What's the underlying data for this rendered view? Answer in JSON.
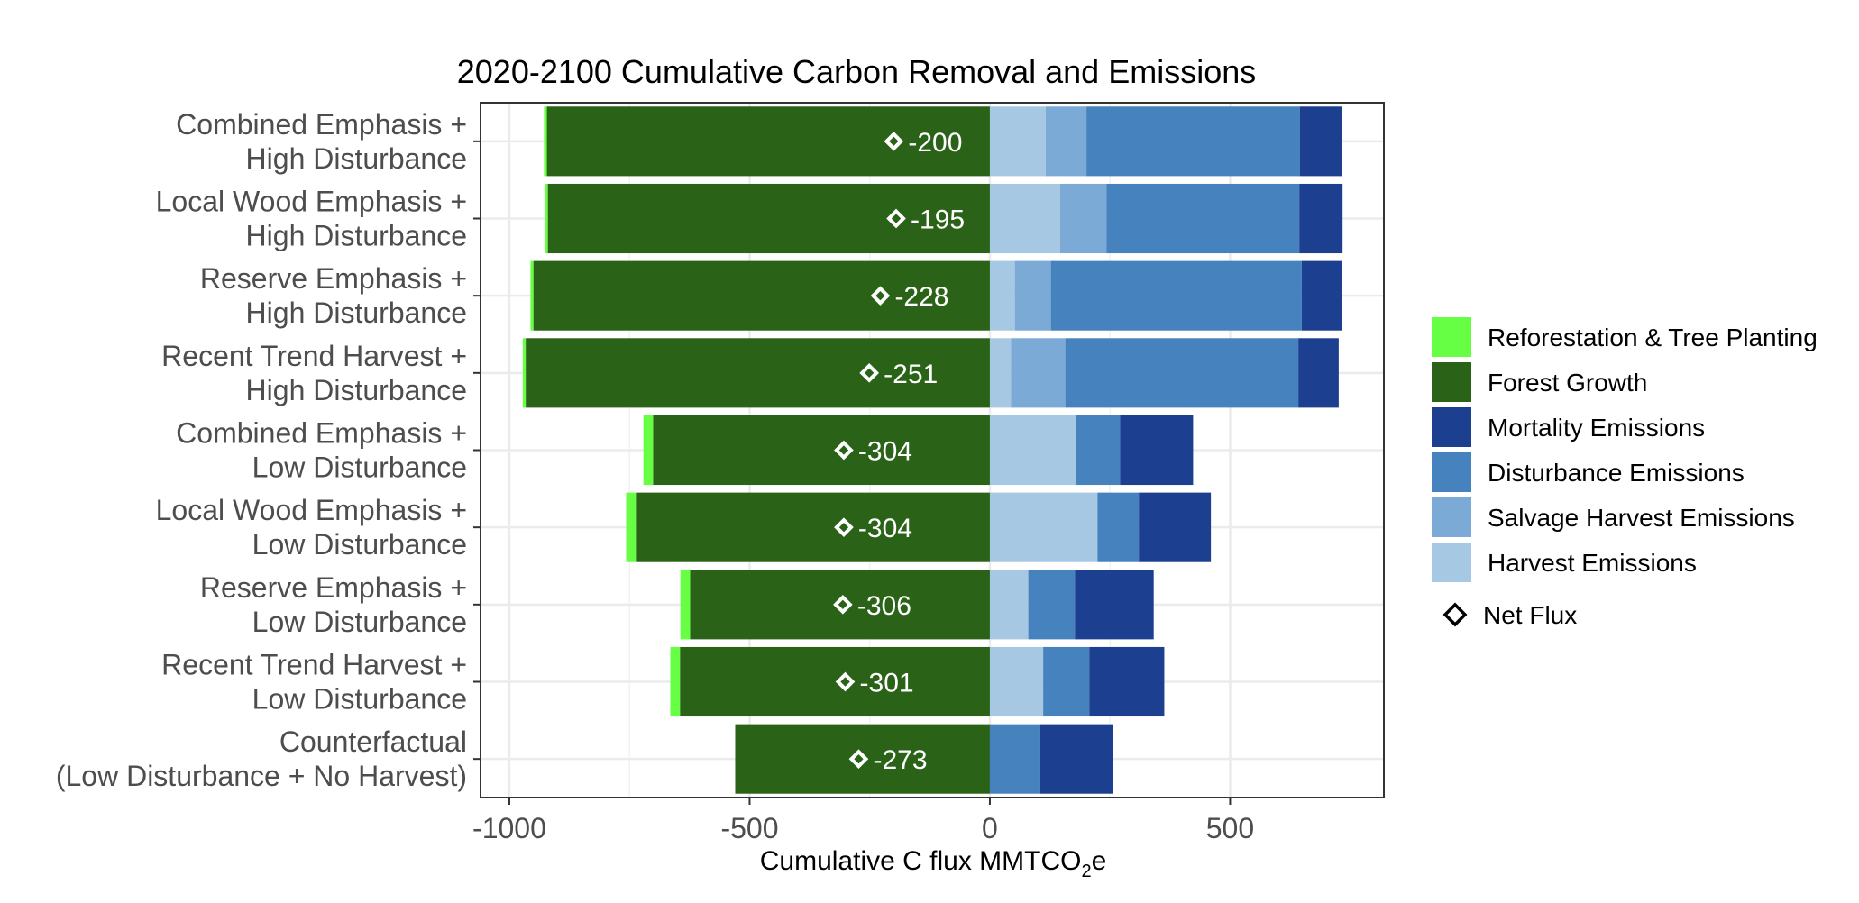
{
  "chart_data": {
    "type": "bar",
    "orientation": "horizontal",
    "stacked": true,
    "title": "2020-2100 Cumulative Carbon Removal and Emissions",
    "xlabel_main": "Cumulative C flux MMTCO",
    "xlabel_sub": "2",
    "xlabel_tail": "e",
    "xlabel": "Cumulative C flux MMTCO2e",
    "ylabel": "",
    "xlim": [
      -1060,
      820
    ],
    "xticks": [
      -1000,
      -500,
      0,
      500
    ],
    "xtick_labels": [
      "-1000",
      "-500",
      "0",
      "500"
    ],
    "grid": true,
    "legend_position": "right",
    "categories": [
      [
        "Combined Emphasis +",
        "High Disturbance"
      ],
      [
        "Local Wood Emphasis +",
        "High Disturbance"
      ],
      [
        "Reserve Emphasis +",
        "High Disturbance"
      ],
      [
        "Recent Trend Harvest +",
        "High Disturbance"
      ],
      [
        "Combined Emphasis +",
        "Low Disturbance"
      ],
      [
        "Local Wood Emphasis +",
        "Low Disturbance"
      ],
      [
        "Reserve Emphasis +",
        "Low Disturbance"
      ],
      [
        "Recent Trend Harvest +",
        "Low Disturbance"
      ],
      [
        "Counterfactual",
        "(Low Disturbance + No Harvest)"
      ]
    ],
    "series": [
      {
        "name": "Reforestation & Tree Planting",
        "key": "reforestation",
        "color": "#66ff44",
        "side": "negative",
        "values": [
          -6,
          -6,
          -6,
          -6,
          -20,
          -22,
          -20,
          -20,
          0
        ]
      },
      {
        "name": "Forest Growth",
        "key": "forest_growth",
        "color": "#2a6317",
        "side": "negative",
        "values": [
          -922,
          -920,
          -950,
          -966,
          -701,
          -735,
          -624,
          -645,
          -530
        ]
      },
      {
        "name": "Harvest Emissions",
        "key": "harvest",
        "color": "#a7c8e2",
        "side": "positive",
        "values": [
          116,
          146,
          52,
          44,
          180,
          224,
          80,
          111,
          0
        ]
      },
      {
        "name": "Salvage Harvest Emissions",
        "key": "salvage",
        "color": "#7baad6",
        "side": "positive",
        "values": [
          85,
          97,
          75,
          113,
          0,
          0,
          0,
          0,
          0
        ]
      },
      {
        "name": "Disturbance Emissions",
        "key": "disturbance",
        "color": "#4682bd",
        "side": "positive",
        "values": [
          444,
          401,
          522,
          485,
          91,
          86,
          97,
          96,
          105
        ]
      },
      {
        "name": "Mortality Emissions",
        "key": "mortality",
        "color": "#1c3f8f",
        "side": "positive",
        "values": [
          88,
          90,
          83,
          84,
          152,
          150,
          164,
          156,
          151
        ]
      }
    ],
    "legend_order": [
      "reforestation",
      "forest_growth",
      "mortality",
      "disturbance",
      "salvage",
      "harvest"
    ],
    "net_flux": {
      "name": "Net Flux",
      "values": [
        -200,
        -195,
        -228,
        -251,
        -304,
        -304,
        -306,
        -301,
        -273
      ],
      "labels": [
        "-200",
        "-195",
        "-228",
        "-251",
        "-304",
        "-304",
        "-306",
        "-301",
        "-273"
      ]
    }
  }
}
